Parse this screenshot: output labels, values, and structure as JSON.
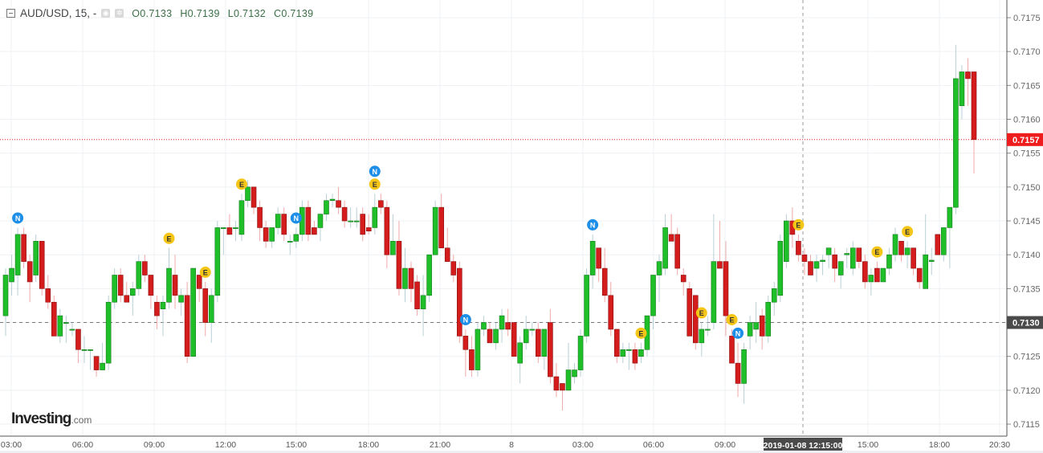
{
  "header": {
    "symbol": "AUD/USD, 15, -",
    "open": "O0.7133",
    "high": "H0.7139",
    "low": "L0.7132",
    "close": "C0.7139",
    "icons": [
      "collapse-icon",
      "eye-icon",
      "gear-icon"
    ]
  },
  "logo": {
    "main": "Investing",
    "suffix": ".com"
  },
  "colors": {
    "up": "#1fbf2a",
    "down": "#d41c1c",
    "current_price": "#ee1c1c",
    "crosshair_label": "#4a4a4a"
  },
  "chart_data": {
    "type": "candlestick",
    "title": "AUD/USD, 15",
    "interval_minutes": 15,
    "ylim": [
      0.7113,
      0.7178
    ],
    "y_ticks": [
      "0.7115",
      "0.7120",
      "0.7125",
      "0.7130",
      "0.7135",
      "0.7140",
      "0.7145",
      "0.7150",
      "0.7155",
      "0.7160",
      "0.7165",
      "0.7170",
      "0.7175"
    ],
    "x_ticks": [
      "03:00",
      "06:00",
      "09:00",
      "12:00",
      "15:00",
      "18:00",
      "21:00",
      "8",
      "03:00",
      "06:00",
      "09:00",
      "15:00",
      "18:00",
      "20:30"
    ],
    "grid": true,
    "current_price": {
      "value": 0.7157,
      "label": "0.7157"
    },
    "crosshair": {
      "price": 0.713,
      "price_label": "0.7130",
      "time_label": "2019-01-08 12:15:00"
    },
    "candles": [
      [
        0.7131,
        0.7138,
        0.7128,
        0.7137
      ],
      [
        0.7136,
        0.714,
        0.7134,
        0.7138
      ],
      [
        0.7137,
        0.7144,
        0.7134,
        0.7143
      ],
      [
        0.7143,
        0.7144,
        0.7138,
        0.7139
      ],
      [
        0.7139,
        0.714,
        0.7133,
        0.7136
      ],
      [
        0.7137,
        0.7143,
        0.7136,
        0.7142
      ],
      [
        0.7142,
        0.7142,
        0.7134,
        0.7135
      ],
      [
        0.7135,
        0.7137,
        0.7132,
        0.7133
      ],
      [
        0.7133,
        0.7134,
        0.7128,
        0.7128
      ],
      [
        0.7128,
        0.7132,
        0.7127,
        0.7131
      ],
      [
        0.713,
        0.7131,
        0.7127,
        0.713
      ],
      [
        0.7129,
        0.713,
        0.7128,
        0.7129
      ],
      [
        0.7129,
        0.7129,
        0.7124,
        0.7126
      ],
      [
        0.7126,
        0.7128,
        0.7124,
        0.7126
      ],
      [
        0.7126,
        0.7126,
        0.7123,
        0.7126
      ],
      [
        0.7125,
        0.7125,
        0.7122,
        0.7123
      ],
      [
        0.7123,
        0.7127,
        0.7123,
        0.7124
      ],
      [
        0.7124,
        0.7134,
        0.7123,
        0.7133
      ],
      [
        0.7133,
        0.7138,
        0.7132,
        0.7137
      ],
      [
        0.7137,
        0.7138,
        0.7133,
        0.7134
      ],
      [
        0.7134,
        0.7136,
        0.7133,
        0.7133
      ],
      [
        0.7134,
        0.7136,
        0.7131,
        0.7135
      ],
      [
        0.7135,
        0.714,
        0.7134,
        0.7139
      ],
      [
        0.7139,
        0.714,
        0.7136,
        0.7137
      ],
      [
        0.7137,
        0.7137,
        0.7132,
        0.7134
      ],
      [
        0.7133,
        0.7134,
        0.7129,
        0.7131
      ],
      [
        0.7132,
        0.7134,
        0.7128,
        0.7133
      ],
      [
        0.7133,
        0.7141,
        0.7132,
        0.7138
      ],
      [
        0.7137,
        0.714,
        0.7132,
        0.7134
      ],
      [
        0.7133,
        0.7135,
        0.7131,
        0.7134
      ],
      [
        0.7134,
        0.7136,
        0.7124,
        0.7125
      ],
      [
        0.7125,
        0.7138,
        0.7125,
        0.7138
      ],
      [
        0.7137,
        0.7137,
        0.7133,
        0.7135
      ],
      [
        0.7135,
        0.7136,
        0.7128,
        0.713
      ],
      [
        0.713,
        0.7135,
        0.7127,
        0.7134
      ],
      [
        0.7134,
        0.7145,
        0.7133,
        0.7144
      ],
      [
        0.7144,
        0.7144,
        0.714,
        0.7144
      ],
      [
        0.7144,
        0.7146,
        0.7143,
        0.7143
      ],
      [
        0.7144,
        0.7145,
        0.7142,
        0.7144
      ],
      [
        0.7143,
        0.7149,
        0.7142,
        0.7148
      ],
      [
        0.7148,
        0.7151,
        0.7147,
        0.715
      ],
      [
        0.715,
        0.715,
        0.7146,
        0.7147
      ],
      [
        0.7147,
        0.7148,
        0.7142,
        0.7144
      ],
      [
        0.7144,
        0.7145,
        0.7141,
        0.7142
      ],
      [
        0.7142,
        0.7144,
        0.7141,
        0.7144
      ],
      [
        0.7144,
        0.7147,
        0.7143,
        0.7146
      ],
      [
        0.7146,
        0.7147,
        0.7142,
        0.7143
      ],
      [
        0.7142,
        0.7143,
        0.714,
        0.7142
      ],
      [
        0.7142,
        0.7144,
        0.7141,
        0.7143
      ],
      [
        0.7143,
        0.7148,
        0.7142,
        0.7147
      ],
      [
        0.7147,
        0.7148,
        0.7142,
        0.7143
      ],
      [
        0.7144,
        0.7145,
        0.7143,
        0.7143
      ],
      [
        0.7144,
        0.7146,
        0.7142,
        0.7146
      ],
      [
        0.7146,
        0.7149,
        0.7145,
        0.7148
      ],
      [
        0.7148,
        0.7149,
        0.7147,
        0.71482
      ],
      [
        0.7148,
        0.715,
        0.7146,
        0.7147
      ],
      [
        0.7147,
        0.7148,
        0.7144,
        0.7145
      ],
      [
        0.7145,
        0.7147,
        0.7144,
        0.7145
      ],
      [
        0.7145,
        0.7147,
        0.7144,
        0.7145
      ],
      [
        0.7146,
        0.7147,
        0.7142,
        0.7143
      ],
      [
        0.7144,
        0.7146,
        0.7143,
        0.71435
      ],
      [
        0.7144,
        0.7149,
        0.7143,
        0.7147
      ],
      [
        0.7148,
        0.7149,
        0.7146,
        0.7147
      ],
      [
        0.7147,
        0.7148,
        0.7138,
        0.714
      ],
      [
        0.714,
        0.7146,
        0.714,
        0.7142
      ],
      [
        0.7142,
        0.7145,
        0.7134,
        0.7135
      ],
      [
        0.7135,
        0.7141,
        0.7133,
        0.7138
      ],
      [
        0.7138,
        0.7139,
        0.7133,
        0.7135
      ],
      [
        0.7136,
        0.7137,
        0.7131,
        0.7132
      ],
      [
        0.7132,
        0.7137,
        0.7128,
        0.7134
      ],
      [
        0.7134,
        0.714,
        0.7133,
        0.714
      ],
      [
        0.714,
        0.7148,
        0.714,
        0.7147
      ],
      [
        0.7147,
        0.7149,
        0.7141,
        0.7141
      ],
      [
        0.7141,
        0.7144,
        0.7139,
        0.7139
      ],
      [
        0.7139,
        0.714,
        0.7136,
        0.7137
      ],
      [
        0.7138,
        0.7139,
        0.7127,
        0.7128
      ],
      [
        0.7128,
        0.7129,
        0.7122,
        0.7126
      ],
      [
        0.7126,
        0.7128,
        0.7122,
        0.7123
      ],
      [
        0.7123,
        0.713,
        0.7122,
        0.7129
      ],
      [
        0.7129,
        0.7131,
        0.7128,
        0.713
      ],
      [
        0.7129,
        0.713,
        0.7127,
        0.7127
      ],
      [
        0.7127,
        0.713,
        0.7126,
        0.7129
      ],
      [
        0.7129,
        0.7132,
        0.7127,
        0.7131
      ],
      [
        0.713,
        0.7132,
        0.7128,
        0.7129
      ],
      [
        0.713,
        0.713,
        0.7125,
        0.7125
      ],
      [
        0.7124,
        0.7128,
        0.7121,
        0.7127
      ],
      [
        0.7127,
        0.7131,
        0.7126,
        0.7129
      ],
      [
        0.7129,
        0.713,
        0.7128,
        0.7129
      ],
      [
        0.7129,
        0.713,
        0.7124,
        0.7125
      ],
      [
        0.7125,
        0.7129,
        0.7123,
        0.7129
      ],
      [
        0.713,
        0.7132,
        0.7121,
        0.7122
      ],
      [
        0.7122,
        0.7124,
        0.7119,
        0.712
      ],
      [
        0.7121,
        0.7121,
        0.7117,
        0.712
      ],
      [
        0.712,
        0.7127,
        0.712,
        0.7123
      ],
      [
        0.7122,
        0.7124,
        0.7121,
        0.7123
      ],
      [
        0.7123,
        0.7129,
        0.7122,
        0.7128
      ],
      [
        0.7128,
        0.7138,
        0.7127,
        0.7137
      ],
      [
        0.7137,
        0.7143,
        0.7135,
        0.7142
      ],
      [
        0.7141,
        0.7141,
        0.7136,
        0.7138
      ],
      [
        0.7138,
        0.7141,
        0.7133,
        0.7134
      ],
      [
        0.7134,
        0.7136,
        0.7128,
        0.7129
      ],
      [
        0.7129,
        0.7129,
        0.7124,
        0.7125
      ],
      [
        0.7125,
        0.7127,
        0.7124,
        0.7126
      ],
      [
        0.7126,
        0.7127,
        0.7123,
        0.7126
      ],
      [
        0.7126,
        0.7127,
        0.7123,
        0.7124
      ],
      [
        0.7125,
        0.7127,
        0.7124,
        0.7126
      ],
      [
        0.7126,
        0.7131,
        0.7125,
        0.7131
      ],
      [
        0.7131,
        0.7137,
        0.7129,
        0.7137
      ],
      [
        0.7137,
        0.714,
        0.7133,
        0.7139
      ],
      [
        0.7138,
        0.7146,
        0.7137,
        0.7144
      ],
      [
        0.7143,
        0.7146,
        0.7142,
        0.7142
      ],
      [
        0.7143,
        0.7144,
        0.7137,
        0.7138
      ],
      [
        0.7137,
        0.7138,
        0.7134,
        0.7136
      ],
      [
        0.7135,
        0.7136,
        0.7128,
        0.7128
      ],
      [
        0.7134,
        0.7134,
        0.7126,
        0.7127
      ],
      [
        0.7127,
        0.713,
        0.7125,
        0.7129
      ],
      [
        0.7129,
        0.7131,
        0.7128,
        0.7129
      ],
      [
        0.713,
        0.7146,
        0.7129,
        0.7139
      ],
      [
        0.7139,
        0.7145,
        0.7138,
        0.7138
      ],
      [
        0.7139,
        0.7142,
        0.7128,
        0.7131
      ],
      [
        0.7128,
        0.7129,
        0.7124,
        0.7124
      ],
      [
        0.7124,
        0.7127,
        0.7119,
        0.7121
      ],
      [
        0.7121,
        0.7127,
        0.7118,
        0.7126
      ],
      [
        0.7128,
        0.7131,
        0.7126,
        0.713
      ],
      [
        0.7129,
        0.7133,
        0.7127,
        0.713
      ],
      [
        0.7131,
        0.7132,
        0.7126,
        0.7128
      ],
      [
        0.7128,
        0.7134,
        0.7127,
        0.7133
      ],
      [
        0.7133,
        0.7136,
        0.7131,
        0.7135
      ],
      [
        0.7134,
        0.7143,
        0.7133,
        0.7142
      ],
      [
        0.7139,
        0.7146,
        0.7138,
        0.7145
      ],
      [
        0.7145,
        0.7147,
        0.7141,
        0.7143
      ],
      [
        0.7142,
        0.7143,
        0.7139,
        0.714
      ],
      [
        0.714,
        0.7141,
        0.7137,
        0.7139
      ],
      [
        0.7139,
        0.714,
        0.7137,
        0.7137
      ],
      [
        0.7138,
        0.714,
        0.7136,
        0.7139
      ],
      [
        0.7139,
        0.714,
        0.7137,
        0.71392
      ],
      [
        0.714,
        0.7141,
        0.7138,
        0.7141
      ],
      [
        0.714,
        0.7141,
        0.7136,
        0.7138
      ],
      [
        0.7137,
        0.7139,
        0.7135,
        0.7139
      ],
      [
        0.714,
        0.7141,
        0.7138,
        0.71402
      ],
      [
        0.7138,
        0.7142,
        0.7137,
        0.7141
      ],
      [
        0.7141,
        0.7141,
        0.7138,
        0.7139
      ],
      [
        0.7139,
        0.714,
        0.7135,
        0.7136
      ],
      [
        0.7136,
        0.7138,
        0.7134,
        0.7137
      ],
      [
        0.7138,
        0.7139,
        0.7136,
        0.7136
      ],
      [
        0.7136,
        0.7138,
        0.7136,
        0.7138
      ],
      [
        0.7138,
        0.7141,
        0.7137,
        0.714
      ],
      [
        0.714,
        0.7144,
        0.7139,
        0.7143
      ],
      [
        0.7142,
        0.7142,
        0.7139,
        0.714
      ],
      [
        0.714,
        0.7142,
        0.7138,
        0.7141
      ],
      [
        0.7141,
        0.7141,
        0.7137,
        0.7138
      ],
      [
        0.7138,
        0.7138,
        0.7135,
        0.7136
      ],
      [
        0.7135,
        0.7146,
        0.7135,
        0.714
      ],
      [
        0.7139,
        0.7141,
        0.7137,
        0.71392
      ],
      [
        0.7143,
        0.7143,
        0.714,
        0.714
      ],
      [
        0.714,
        0.7144,
        0.7139,
        0.7144
      ],
      [
        0.7144,
        0.7147,
        0.7138,
        0.7147
      ],
      [
        0.7147,
        0.7171,
        0.7146,
        0.7166
      ],
      [
        0.7162,
        0.7168,
        0.716,
        0.7167
      ],
      [
        0.7167,
        0.7169,
        0.7162,
        0.7166
      ],
      [
        0.7167,
        0.7167,
        0.7152,
        0.7157
      ]
    ],
    "events": [
      {
        "candle": 2,
        "type": "N"
      },
      {
        "candle": 27,
        "type": "E"
      },
      {
        "candle": 33,
        "type": "E"
      },
      {
        "candle": 39,
        "type": "E"
      },
      {
        "candle": 48,
        "type": "N"
      },
      {
        "candle": 61,
        "type": "N"
      },
      {
        "candle": 61,
        "type": "E"
      },
      {
        "candle": 76,
        "type": "N"
      },
      {
        "candle": 97,
        "type": "N"
      },
      {
        "candle": 105,
        "type": "E"
      },
      {
        "candle": 115,
        "type": "E"
      },
      {
        "candle": 120,
        "type": "E"
      },
      {
        "candle": 121,
        "type": "N"
      },
      {
        "candle": 131,
        "type": "E"
      },
      {
        "candle": 144,
        "type": "E"
      },
      {
        "candle": 149,
        "type": "E"
      }
    ]
  }
}
